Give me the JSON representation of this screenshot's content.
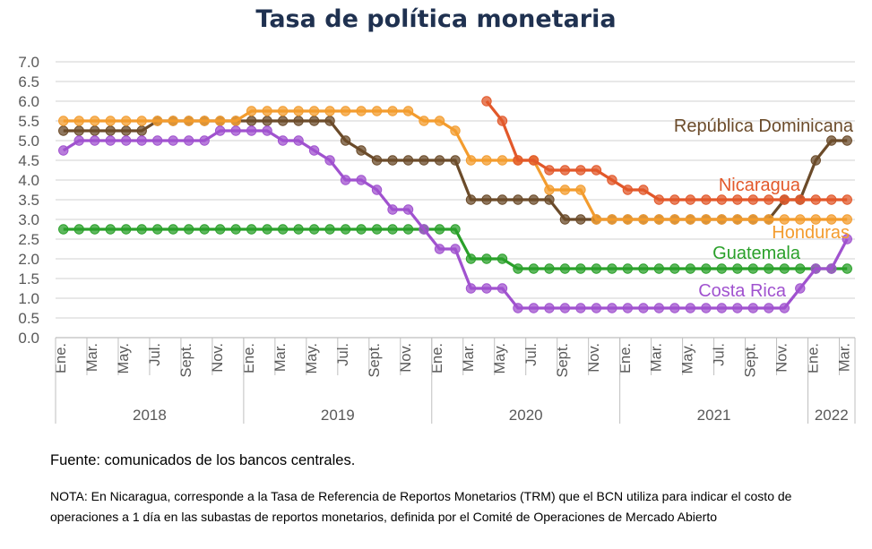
{
  "title": "Tasa de política monetaria",
  "source": "Fuente: comunicados de los bancos centrales.",
  "note": "NOTA: En Nicaragua, corresponde a la Tasa de Referencia de Reportos Monetarios (TRM) que el BCN utiliza para indicar el costo de operaciones a 1 día en las subastas de reportos monetarios, definida por el Comité de Operaciones de Mercado Abierto",
  "chart_data": {
    "type": "line",
    "title": "Tasa de política monetaria",
    "xlabel": "",
    "ylabel": "",
    "ylim": [
      0,
      7
    ],
    "y_ticks": [
      "0.0",
      "0.5",
      "1.0",
      "1.5",
      "2.0",
      "2.5",
      "3.0",
      "3.5",
      "4.0",
      "4.5",
      "5.0",
      "5.5",
      "6.0",
      "6.5",
      "7.0"
    ],
    "grid": true,
    "legend": "labels next to lines",
    "month_tick_labels": [
      "Ene.",
      "Mar.",
      "May.",
      "Jul.",
      "Sept.",
      "Nov.",
      "Ene.",
      "Mar.",
      "May.",
      "Jul.",
      "Sept.",
      "Nov.",
      "Ene.",
      "Mar.",
      "May.",
      "Jul.",
      "Sept.",
      "Nov.",
      "Ene.",
      "Mar.",
      "May.",
      "Jul.",
      "Sept.",
      "Nov.",
      "Ene.",
      "Mar."
    ],
    "years": [
      "2018",
      "2019",
      "2020",
      "2021",
      "2022"
    ],
    "x": [
      "2018-01",
      "2018-02",
      "2018-03",
      "2018-04",
      "2018-05",
      "2018-06",
      "2018-07",
      "2018-08",
      "2018-09",
      "2018-10",
      "2018-11",
      "2018-12",
      "2019-01",
      "2019-02",
      "2019-03",
      "2019-04",
      "2019-05",
      "2019-06",
      "2019-07",
      "2019-08",
      "2019-09",
      "2019-10",
      "2019-11",
      "2019-12",
      "2020-01",
      "2020-02",
      "2020-03",
      "2020-04",
      "2020-05",
      "2020-06",
      "2020-07",
      "2020-08",
      "2020-09",
      "2020-10",
      "2020-11",
      "2020-12",
      "2021-01",
      "2021-02",
      "2021-03",
      "2021-04",
      "2021-05",
      "2021-06",
      "2021-07",
      "2021-08",
      "2021-09",
      "2021-10",
      "2021-11",
      "2021-12",
      "2022-01",
      "2022-02",
      "2022-03"
    ],
    "series": [
      {
        "name": "República Dominicana",
        "color": "#6b4b2a",
        "values": [
          5.25,
          5.25,
          5.25,
          5.25,
          5.25,
          5.25,
          5.5,
          5.5,
          5.5,
          5.5,
          5.5,
          5.5,
          5.5,
          5.5,
          5.5,
          5.5,
          5.5,
          5.5,
          5.0,
          4.75,
          4.5,
          4.5,
          4.5,
          4.5,
          4.5,
          4.5,
          3.5,
          3.5,
          3.5,
          3.5,
          3.5,
          3.5,
          3.0,
          3.0,
          3.0,
          3.0,
          3.0,
          3.0,
          3.0,
          3.0,
          3.0,
          3.0,
          3.0,
          3.0,
          3.0,
          3.0,
          3.5,
          3.5,
          4.5,
          5.0,
          5.0
        ]
      },
      {
        "name": "Nicaragua",
        "color": "#e2582a",
        "values": [
          null,
          null,
          null,
          null,
          null,
          null,
          null,
          null,
          null,
          null,
          null,
          null,
          null,
          null,
          null,
          null,
          null,
          null,
          null,
          null,
          null,
          null,
          null,
          null,
          null,
          null,
          null,
          6.0,
          5.5,
          4.5,
          4.5,
          4.25,
          4.25,
          4.25,
          4.25,
          4.0,
          3.75,
          3.75,
          3.5,
          3.5,
          3.5,
          3.5,
          3.5,
          3.5,
          3.5,
          3.5,
          3.5,
          3.5,
          3.5,
          3.5,
          3.5
        ]
      },
      {
        "name": "Honduras",
        "color": "#f39c2e",
        "values": [
          5.5,
          5.5,
          5.5,
          5.5,
          5.5,
          5.5,
          5.5,
          5.5,
          5.5,
          5.5,
          5.5,
          5.5,
          5.75,
          5.75,
          5.75,
          5.75,
          5.75,
          5.75,
          5.75,
          5.75,
          5.75,
          5.75,
          5.75,
          5.5,
          5.5,
          5.25,
          4.5,
          4.5,
          4.5,
          4.5,
          4.5,
          3.75,
          3.75,
          3.75,
          3.0,
          3.0,
          3.0,
          3.0,
          3.0,
          3.0,
          3.0,
          3.0,
          3.0,
          3.0,
          3.0,
          3.0,
          3.0,
          3.0,
          3.0,
          3.0,
          3.0
        ]
      },
      {
        "name": "Guatemala",
        "color": "#2aa02a",
        "values": [
          2.75,
          2.75,
          2.75,
          2.75,
          2.75,
          2.75,
          2.75,
          2.75,
          2.75,
          2.75,
          2.75,
          2.75,
          2.75,
          2.75,
          2.75,
          2.75,
          2.75,
          2.75,
          2.75,
          2.75,
          2.75,
          2.75,
          2.75,
          2.75,
          2.75,
          2.75,
          2.0,
          2.0,
          2.0,
          1.75,
          1.75,
          1.75,
          1.75,
          1.75,
          1.75,
          1.75,
          1.75,
          1.75,
          1.75,
          1.75,
          1.75,
          1.75,
          1.75,
          1.75,
          1.75,
          1.75,
          1.75,
          1.75,
          1.75,
          1.75,
          1.75
        ]
      },
      {
        "name": "Costa Rica",
        "color": "#a052cf",
        "values": [
          4.75,
          5.0,
          5.0,
          5.0,
          5.0,
          5.0,
          5.0,
          5.0,
          5.0,
          5.0,
          5.25,
          5.25,
          5.25,
          5.25,
          5.0,
          5.0,
          4.75,
          4.5,
          4.0,
          4.0,
          3.75,
          3.25,
          3.25,
          2.75,
          2.25,
          2.25,
          1.25,
          1.25,
          1.25,
          0.75,
          0.75,
          0.75,
          0.75,
          0.75,
          0.75,
          0.75,
          0.75,
          0.75,
          0.75,
          0.75,
          0.75,
          0.75,
          0.75,
          0.75,
          0.75,
          0.75,
          0.75,
          1.25,
          1.75,
          1.75,
          2.5
        ]
      }
    ]
  }
}
